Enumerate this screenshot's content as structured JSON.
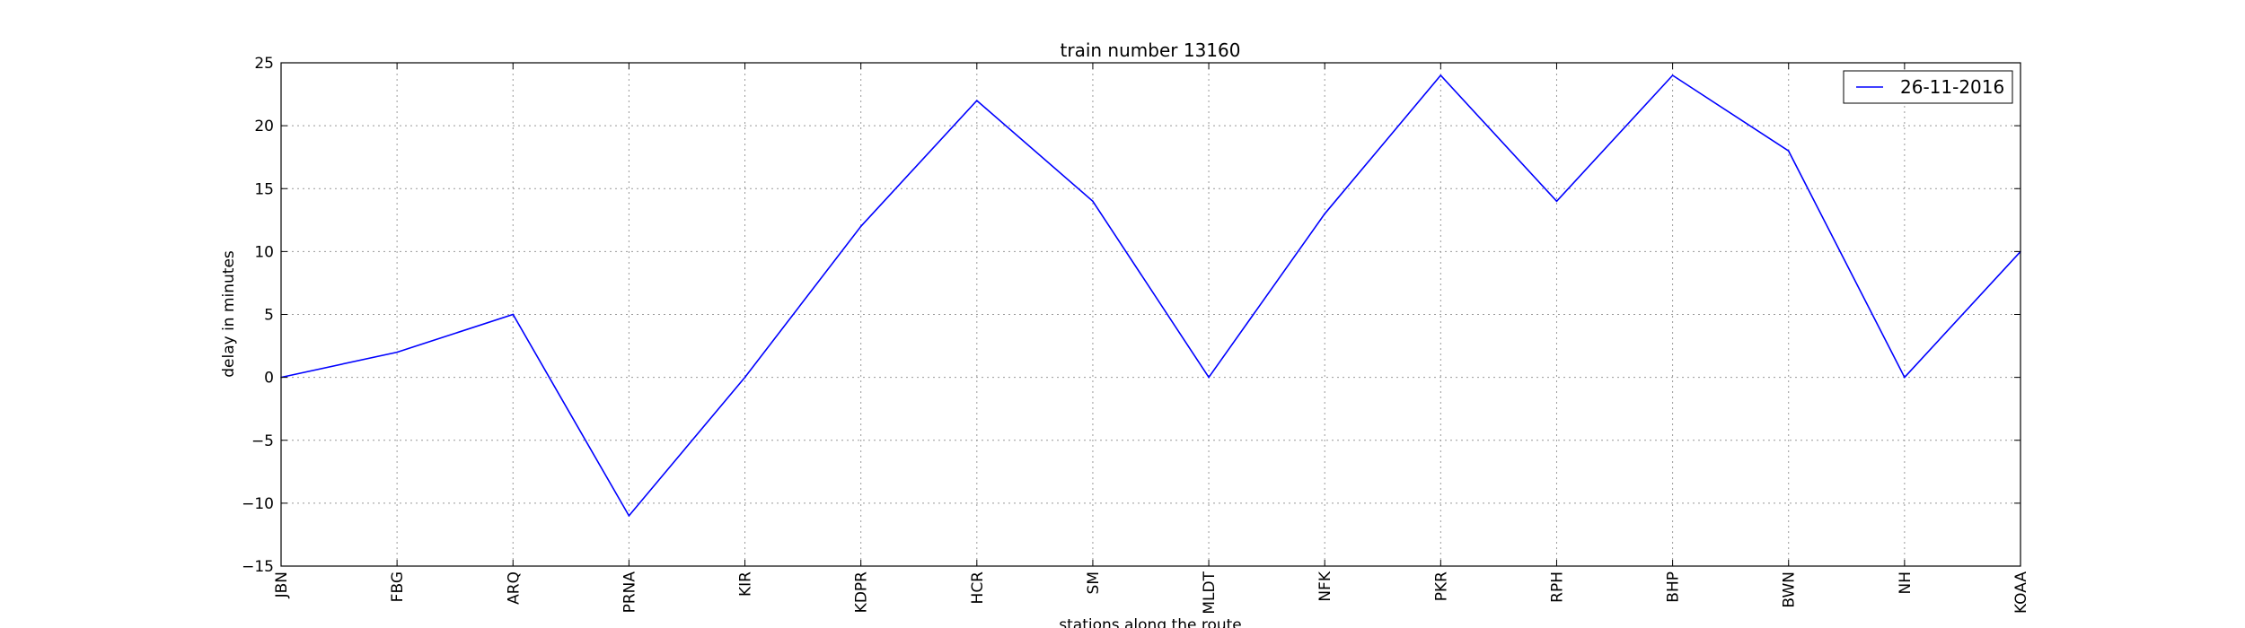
{
  "chart_data": {
    "type": "line",
    "title": "train number 13160",
    "xlabel": "stations along the route",
    "ylabel": "delay in minutes",
    "categories": [
      "JBN",
      "FBG",
      "ARQ",
      "PRNA",
      "KIR",
      "KDPR",
      "HCR",
      "SM",
      "MLDT",
      "NFK",
      "PKR",
      "RPH",
      "BHP",
      "BWN",
      "NH",
      "KOAA"
    ],
    "series": [
      {
        "name": "26-11-2016",
        "color": "#0000ff",
        "values": [
          0,
          2,
          5,
          -11,
          0,
          12,
          22,
          14,
          0,
          13,
          24,
          14,
          24,
          18,
          0,
          10
        ]
      }
    ],
    "ylim": [
      -15,
      25
    ],
    "yticks": [
      -15,
      -10,
      -5,
      0,
      5,
      10,
      15,
      20,
      25
    ],
    "ytick_labels": [
      "−15",
      "−10",
      "−5",
      "0",
      "5",
      "10",
      "15",
      "20",
      "25"
    ],
    "grid": true,
    "legend_position": "top-right"
  }
}
